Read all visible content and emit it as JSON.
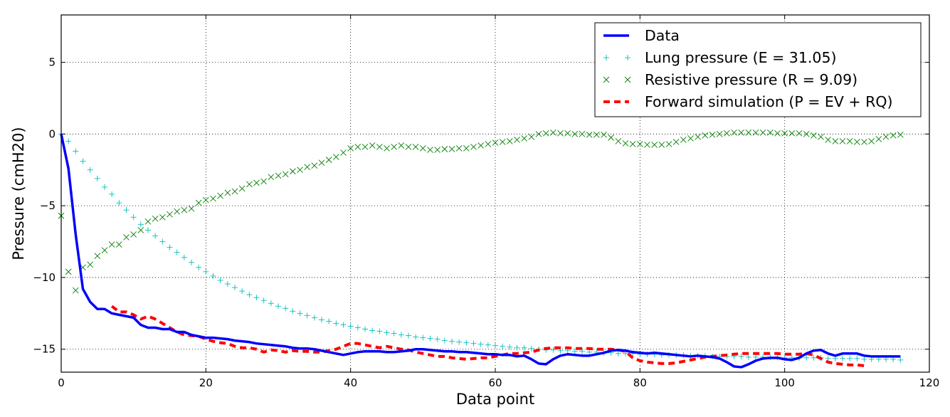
{
  "chart_data": {
    "type": "line",
    "xlabel": "Data point",
    "ylabel": "Pressure (cmH20)",
    "xlim": [
      0,
      120
    ],
    "ylim": [
      -16.6,
      8.3
    ],
    "xticks": [
      0,
      20,
      40,
      60,
      80,
      100,
      120
    ],
    "yticks": [
      5,
      0,
      -5,
      -10,
      -15
    ],
    "grid": true,
    "legend_position": "top-right",
    "series": [
      {
        "name": "Data",
        "style": "solid-line",
        "color": "#0000ff",
        "x": [
          0,
          1,
          2,
          3,
          4,
          5,
          6,
          7,
          8,
          9,
          10,
          11,
          12,
          13,
          14,
          15,
          16,
          17,
          18,
          19,
          20,
          21,
          22,
          23,
          24,
          25,
          26,
          27,
          28,
          29,
          30,
          31,
          32,
          33,
          34,
          35,
          36,
          37,
          38,
          39,
          40,
          41,
          42,
          43,
          44,
          45,
          46,
          47,
          48,
          49,
          50,
          51,
          52,
          53,
          54,
          55,
          56,
          57,
          58,
          59,
          60,
          61,
          62,
          63,
          64,
          65,
          66,
          67,
          68,
          69,
          70,
          71,
          72,
          73,
          74,
          75,
          76,
          77,
          78,
          79,
          80,
          81,
          82,
          83,
          84,
          85,
          86,
          87,
          88,
          89,
          90,
          91,
          92,
          93,
          94,
          95,
          96,
          97,
          98,
          99,
          100,
          101,
          102,
          103,
          104,
          105,
          106,
          107,
          108,
          109,
          110,
          111,
          112,
          113,
          114,
          115,
          116
        ],
        "y": [
          0,
          -2.4,
          -7,
          -10.8,
          -11.7,
          -12.2,
          -12.2,
          -12.5,
          -12.6,
          -12.7,
          -12.8,
          -13.3,
          -13.5,
          -13.5,
          -13.6,
          -13.6,
          -13.8,
          -13.8,
          -14,
          -14.1,
          -14.2,
          -14.2,
          -14.25,
          -14.3,
          -14.4,
          -14.45,
          -14.5,
          -14.6,
          -14.65,
          -14.7,
          -14.75,
          -14.8,
          -14.9,
          -14.95,
          -14.95,
          -15,
          -15.1,
          -15.2,
          -15.3,
          -15.4,
          -15.3,
          -15.2,
          -15.15,
          -15.15,
          -15.15,
          -15.2,
          -15.2,
          -15.15,
          -15.1,
          -15,
          -15,
          -15.05,
          -15.1,
          -15.15,
          -15.15,
          -15.2,
          -15.2,
          -15.25,
          -15.3,
          -15.35,
          -15.35,
          -15.4,
          -15.4,
          -15.5,
          -15.45,
          -15.7,
          -16,
          -16.05,
          -15.7,
          -15.45,
          -15.35,
          -15.4,
          -15.45,
          -15.45,
          -15.35,
          -15.25,
          -15.1,
          -15.05,
          -15.1,
          -15.2,
          -15.25,
          -15.3,
          -15.25,
          -15.3,
          -15.35,
          -15.4,
          -15.45,
          -15.5,
          -15.45,
          -15.5,
          -15.55,
          -15.65,
          -15.9,
          -16.2,
          -16.25,
          -16.05,
          -15.8,
          -15.65,
          -15.6,
          -15.6,
          -15.7,
          -15.75,
          -15.6,
          -15.3,
          -15.1,
          -15.05,
          -15.3,
          -15.45,
          -15.3,
          -15.3,
          -15.3,
          -15.45,
          -15.5,
          -15.5,
          -15.5,
          -15.5,
          -15.5
        ]
      },
      {
        "name": "Lung pressure (E = 31.05)",
        "style": "plus-markers",
        "color": "#00bfbf",
        "x": [
          0,
          1,
          2,
          3,
          4,
          5,
          6,
          7,
          8,
          9,
          10,
          11,
          12,
          13,
          14,
          15,
          16,
          17,
          18,
          19,
          20,
          21,
          22,
          23,
          24,
          25,
          26,
          27,
          28,
          29,
          30,
          31,
          32,
          33,
          34,
          35,
          36,
          37,
          38,
          39,
          40,
          41,
          42,
          43,
          44,
          45,
          46,
          47,
          48,
          49,
          50,
          51,
          52,
          53,
          54,
          55,
          56,
          57,
          58,
          59,
          60,
          61,
          62,
          63,
          64,
          65,
          66,
          67,
          68,
          69,
          70,
          71,
          72,
          73,
          74,
          75,
          76,
          77,
          78,
          79,
          80,
          81,
          82,
          83,
          84,
          85,
          86,
          87,
          88,
          89,
          90,
          91,
          92,
          93,
          94,
          95,
          96,
          97,
          98,
          99,
          100,
          101,
          102,
          103,
          104,
          105,
          106,
          107,
          108,
          109,
          110,
          111,
          112,
          113,
          114,
          115,
          116
        ],
        "y": [
          0,
          -0.5,
          -1.2,
          -1.9,
          -2.5,
          -3.1,
          -3.7,
          -4.2,
          -4.8,
          -5.3,
          -5.8,
          -6.3,
          -6.7,
          -7.1,
          -7.5,
          -7.9,
          -8.25,
          -8.6,
          -8.95,
          -9.3,
          -9.6,
          -9.9,
          -10.2,
          -10.45,
          -10.7,
          -10.95,
          -11.2,
          -11.4,
          -11.6,
          -11.8,
          -12,
          -12.15,
          -12.35,
          -12.5,
          -12.65,
          -12.8,
          -12.95,
          -13.05,
          -13.2,
          -13.3,
          -13.4,
          -13.5,
          -13.6,
          -13.7,
          -13.75,
          -13.85,
          -13.9,
          -14,
          -14.05,
          -14.15,
          -14.2,
          -14.25,
          -14.3,
          -14.4,
          -14.45,
          -14.5,
          -14.55,
          -14.6,
          -14.65,
          -14.7,
          -14.75,
          -14.8,
          -14.85,
          -14.9,
          -14.9,
          -14.95,
          -15,
          -15.05,
          -15.05,
          -15.1,
          -15.1,
          -15.15,
          -15.15,
          -15.2,
          -15.2,
          -15.25,
          -15.25,
          -15.3,
          -15.3,
          -15.3,
          -15.35,
          -15.35,
          -15.35,
          -15.4,
          -15.4,
          -15.4,
          -15.4,
          -15.45,
          -15.45,
          -15.45,
          -15.5,
          -15.5,
          -15.5,
          -15.5,
          -15.5,
          -15.55,
          -15.55,
          -15.55,
          -15.55,
          -15.55,
          -15.6,
          -15.6,
          -15.6,
          -15.6,
          -15.6,
          -15.6,
          -15.65,
          -15.65,
          -15.65,
          -15.65,
          -15.65,
          -15.7,
          -15.7,
          -15.7,
          -15.7,
          -15.7,
          -15.75
        ]
      },
      {
        "name": "Resistive pressure (R = 9.09)",
        "style": "x-markers",
        "color": "#008000",
        "x": [
          0,
          1,
          2,
          3,
          4,
          5,
          6,
          7,
          8,
          9,
          10,
          11,
          12,
          13,
          14,
          15,
          16,
          17,
          18,
          19,
          20,
          21,
          22,
          23,
          24,
          25,
          26,
          27,
          28,
          29,
          30,
          31,
          32,
          33,
          34,
          35,
          36,
          37,
          38,
          39,
          40,
          41,
          42,
          43,
          44,
          45,
          46,
          47,
          48,
          49,
          50,
          51,
          52,
          53,
          54,
          55,
          56,
          57,
          58,
          59,
          60,
          61,
          62,
          63,
          64,
          65,
          66,
          67,
          68,
          69,
          70,
          71,
          72,
          73,
          74,
          75,
          76,
          77,
          78,
          79,
          80,
          81,
          82,
          83,
          84,
          85,
          86,
          87,
          88,
          89,
          90,
          91,
          92,
          93,
          94,
          95,
          96,
          97,
          98,
          99,
          100,
          101,
          102,
          103,
          104,
          105,
          106,
          107,
          108,
          109,
          110,
          111,
          112,
          113,
          114,
          115,
          116
        ],
        "y": [
          -5.7,
          -9.6,
          -10.9,
          -9.3,
          -9.1,
          -8.5,
          -8.1,
          -7.7,
          -7.7,
          -7.2,
          -7,
          -6.7,
          -6.1,
          -5.9,
          -5.8,
          -5.6,
          -5.4,
          -5.3,
          -5.2,
          -4.8,
          -4.6,
          -4.5,
          -4.3,
          -4.1,
          -4,
          -3.8,
          -3.5,
          -3.4,
          -3.3,
          -3,
          -2.9,
          -2.8,
          -2.6,
          -2.5,
          -2.3,
          -2.2,
          -2,
          -1.8,
          -1.6,
          -1.3,
          -1,
          -0.9,
          -0.9,
          -0.8,
          -0.9,
          -1,
          -0.9,
          -0.8,
          -0.9,
          -0.9,
          -1,
          -1.1,
          -1.1,
          -1.05,
          -1.05,
          -1,
          -1,
          -0.9,
          -0.8,
          -0.7,
          -0.6,
          -0.55,
          -0.5,
          -0.4,
          -0.3,
          -0.2,
          0,
          0.05,
          0.1,
          0.05,
          0.05,
          0,
          0,
          -0.05,
          -0.05,
          -0.05,
          -0.25,
          -0.5,
          -0.65,
          -0.7,
          -0.7,
          -0.75,
          -0.75,
          -0.75,
          -0.7,
          -0.55,
          -0.4,
          -0.3,
          -0.2,
          -0.1,
          -0.05,
          0,
          0.05,
          0.1,
          0.1,
          0.1,
          0.1,
          0.1,
          0.1,
          0.05,
          0.05,
          0.05,
          0.05,
          0,
          -0.1,
          -0.2,
          -0.4,
          -0.5,
          -0.5,
          -0.5,
          -0.55,
          -0.55,
          -0.5,
          -0.35,
          -0.2,
          -0.1,
          -0.05
        ]
      },
      {
        "name": "Forward simulation (P = EV + RQ)",
        "style": "dashed-line",
        "color": "#ff0000",
        "x": [
          7,
          8,
          9,
          10,
          11,
          12,
          13,
          14,
          15,
          16,
          17,
          18,
          19,
          20,
          21,
          22,
          23,
          24,
          25,
          26,
          27,
          28,
          29,
          30,
          31,
          32,
          33,
          34,
          35,
          36,
          37,
          38,
          39,
          40,
          41,
          42,
          43,
          44,
          45,
          46,
          47,
          48,
          49,
          50,
          51,
          52,
          53,
          54,
          55,
          56,
          57,
          58,
          59,
          60,
          61,
          62,
          63,
          64,
          65,
          66,
          67,
          68,
          69,
          70,
          71,
          72,
          73,
          74,
          75,
          76,
          77,
          78,
          79,
          80,
          81,
          82,
          83,
          84,
          85,
          86,
          87,
          88,
          89,
          90,
          91,
          92,
          93,
          94,
          95,
          96,
          97,
          98,
          99,
          100,
          101,
          102,
          103,
          104,
          105,
          106,
          107,
          108,
          109,
          110,
          111
        ],
        "y": [
          -12,
          -12.4,
          -12.4,
          -12.6,
          -12.9,
          -12.7,
          -12.9,
          -13.2,
          -13.5,
          -13.8,
          -14,
          -14.05,
          -14.1,
          -14.3,
          -14.45,
          -14.55,
          -14.6,
          -14.8,
          -14.9,
          -14.9,
          -15,
          -15.2,
          -15.05,
          -15.1,
          -15.2,
          -15.1,
          -15.15,
          -15.15,
          -15.2,
          -15.2,
          -15.1,
          -15,
          -14.8,
          -14.6,
          -14.6,
          -14.7,
          -14.8,
          -14.9,
          -14.8,
          -14.9,
          -15,
          -15.05,
          -15.2,
          -15.3,
          -15.4,
          -15.5,
          -15.5,
          -15.6,
          -15.65,
          -15.7,
          -15.65,
          -15.6,
          -15.6,
          -15.5,
          -15.4,
          -15.3,
          -15.3,
          -15.25,
          -15.2,
          -15.05,
          -14.95,
          -14.9,
          -14.9,
          -14.9,
          -14.95,
          -14.95,
          -14.95,
          -15,
          -15,
          -15,
          -15.05,
          -15.15,
          -15.6,
          -15.8,
          -15.9,
          -15.95,
          -16,
          -16,
          -15.95,
          -15.85,
          -15.75,
          -15.65,
          -15.55,
          -15.5,
          -15.45,
          -15.4,
          -15.35,
          -15.3,
          -15.3,
          -15.3,
          -15.3,
          -15.3,
          -15.3,
          -15.35,
          -15.35,
          -15.35,
          -15.3,
          -15.4,
          -15.65,
          -15.9,
          -16,
          -16.05,
          -16.1,
          -16.1,
          -16.15
        ]
      }
    ]
  }
}
